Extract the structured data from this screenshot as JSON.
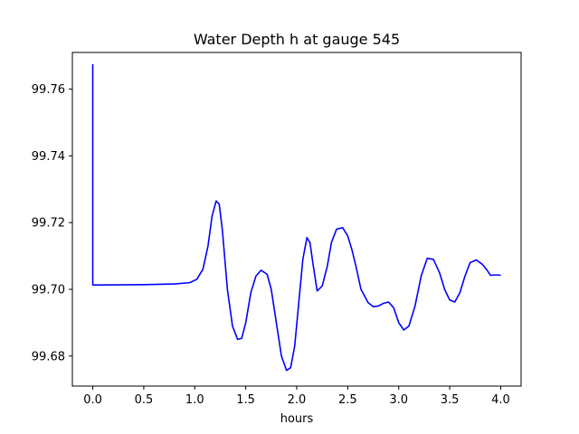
{
  "chart_data": {
    "type": "line",
    "title": "Water Depth h at gauge 545",
    "xlabel": "hours",
    "ylabel": "",
    "xlim": [
      -0.2,
      4.2
    ],
    "ylim": [
      99.671,
      99.771
    ],
    "xticks": [
      0.0,
      0.5,
      1.0,
      1.5,
      2.0,
      2.5,
      3.0,
      3.5,
      4.0
    ],
    "xtick_labels": [
      "0.0",
      "0.5",
      "1.0",
      "1.5",
      "2.0",
      "2.5",
      "3.0",
      "3.5",
      "4.0"
    ],
    "yticks": [
      99.68,
      99.7,
      99.72,
      99.74,
      99.76
    ],
    "ytick_labels": [
      "99.68",
      "99.70",
      "99.72",
      "99.74",
      "99.76"
    ],
    "grid": false,
    "series": [
      {
        "color": "#0000ff",
        "x": [
          0.0,
          0.0,
          0.0,
          0.5,
          0.8,
          0.95,
          1.02,
          1.08,
          1.13,
          1.17,
          1.21,
          1.24,
          1.27,
          1.32,
          1.37,
          1.42,
          1.46,
          1.5,
          1.55,
          1.6,
          1.65,
          1.71,
          1.75,
          1.8,
          1.85,
          1.9,
          1.94,
          1.98,
          2.02,
          2.06,
          2.1,
          2.13,
          2.16,
          2.2,
          2.25,
          2.3,
          2.34,
          2.39,
          2.45,
          2.5,
          2.54,
          2.58,
          2.63,
          2.7,
          2.75,
          2.8,
          2.85,
          2.9,
          2.95,
          3.0,
          3.05,
          3.1,
          3.16,
          3.22,
          3.28,
          3.34,
          3.4,
          3.45,
          3.5,
          3.55,
          3.6,
          3.65,
          3.7,
          3.76,
          3.82,
          3.86,
          3.9,
          3.94,
          3.98,
          4.0
        ],
        "y": [
          99.7675,
          99.7015,
          99.7013,
          99.7014,
          99.7016,
          99.702,
          99.703,
          99.706,
          99.713,
          99.722,
          99.7265,
          99.7255,
          99.718,
          99.7,
          99.689,
          99.685,
          99.6853,
          99.69,
          99.699,
          99.704,
          99.7057,
          99.7045,
          99.7,
          99.69,
          99.68,
          99.6757,
          99.6765,
          99.683,
          99.696,
          99.709,
          99.7155,
          99.714,
          99.7075,
          99.6995,
          99.701,
          99.707,
          99.714,
          99.718,
          99.7185,
          99.716,
          99.712,
          99.707,
          99.7,
          99.696,
          99.6948,
          99.695,
          99.6958,
          99.6962,
          99.6945,
          99.69,
          99.6878,
          99.689,
          99.695,
          99.704,
          99.7093,
          99.709,
          99.705,
          99.7,
          99.6968,
          99.6962,
          99.699,
          99.704,
          99.708,
          99.7088,
          99.7075,
          99.706,
          99.7042,
          99.7043,
          99.7043,
          99.7042
        ]
      }
    ]
  }
}
